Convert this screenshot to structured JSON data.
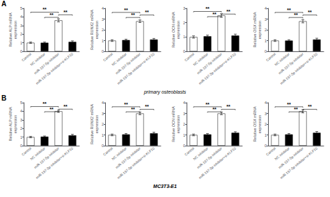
{
  "chart_data": [
    {
      "type": "bar",
      "title": "A",
      "subtitle": "primary osteoblasts",
      "ylabel": "Relative ALP mRNA\nexpression",
      "categories": [
        "Control",
        "NC inhibitor",
        "miR-197-5p inhibitor",
        "miR-197-5p inhibitor+si-KLF10"
      ],
      "values": [
        1.0,
        1.0,
        3.6,
        1.1
      ],
      "errors": [
        0.08,
        0.08,
        0.18,
        0.12
      ],
      "colors": [
        "white",
        "black",
        "white",
        "black"
      ],
      "ylim": [
        0,
        5
      ],
      "yticks": [
        0,
        1,
        2,
        3,
        4,
        5
      ],
      "grid": false,
      "annotations": [
        {
          "from": "Control",
          "to": "miR-197-5p inhibitor",
          "y": 4.55,
          "label": "**"
        },
        {
          "from": "NC inhibitor",
          "to": "miR-197-5p inhibitor",
          "y": 3.95,
          "label": "**"
        },
        {
          "from": "miR-197-5p inhibitor",
          "to": "miR-197-5p inhibitor+si-KLF10",
          "y": 4.25,
          "label": "**"
        }
      ]
    },
    {
      "type": "bar",
      "ylabel": "Relative RUNX2 mRNA\nexpression",
      "categories": [
        "Control",
        "NC inhibitor",
        "miR-197-5p inhibitor",
        "miR-197-5p inhibitor+si-KLF10"
      ],
      "values": [
        1.0,
        1.05,
        2.8,
        1.1
      ],
      "errors": [
        0.08,
        0.08,
        0.12,
        0.1
      ],
      "colors": [
        "white",
        "black",
        "white",
        "black"
      ],
      "ylim": [
        0,
        4
      ],
      "yticks": [
        0,
        1,
        2,
        3,
        4
      ],
      "grid": false,
      "annotations": [
        {
          "from": "Control",
          "to": "miR-197-5p inhibitor",
          "y": 3.62,
          "label": "**"
        },
        {
          "from": "NC inhibitor",
          "to": "miR-197-5p inhibitor",
          "y": 3.15,
          "label": "**"
        },
        {
          "from": "miR-197-5p inhibitor",
          "to": "miR-197-5p inhibitor+si-KLF10",
          "y": 3.38,
          "label": "**"
        }
      ]
    },
    {
      "type": "bar",
      "ylabel": "Relative OCN mRNA\nexpression",
      "categories": [
        "Control",
        "NC inhibitor",
        "miR-197-5p inhibitor",
        "miR-197-5p inhibitor+si-KLF10"
      ],
      "values": [
        1.0,
        1.05,
        2.5,
        1.1
      ],
      "errors": [
        0.08,
        0.08,
        0.12,
        0.1
      ],
      "colors": [
        "white",
        "black",
        "white",
        "black"
      ],
      "ylim": [
        0,
        3
      ],
      "yticks": [
        0,
        1,
        2,
        3
      ],
      "grid": false,
      "annotations": [
        {
          "from": "Control",
          "to": "miR-197-5p inhibitor",
          "y": 2.78,
          "label": "**"
        },
        {
          "from": "NC inhibitor",
          "to": "miR-197-5p inhibitor",
          "y": 2.42,
          "label": "**"
        },
        {
          "from": "miR-197-5p inhibitor",
          "to": "miR-197-5p inhibitor+si-KLF10",
          "y": 2.6,
          "label": "**"
        }
      ]
    },
    {
      "type": "bar",
      "ylabel": "Relative OSX mRNA\nexpression",
      "categories": [
        "Control",
        "NC inhibitor",
        "miR-197-5p inhibitor",
        "miR-197-5p inhibitor+si-KLF10"
      ],
      "values": [
        1.0,
        1.0,
        2.8,
        1.1
      ],
      "errors": [
        0.08,
        0.08,
        0.15,
        0.12
      ],
      "colors": [
        "white",
        "black",
        "white",
        "black"
      ],
      "ylim": [
        0,
        4
      ],
      "yticks": [
        0,
        1,
        2,
        3,
        4
      ],
      "grid": false,
      "annotations": [
        {
          "from": "Control",
          "to": "miR-197-5p inhibitor",
          "y": 3.62,
          "label": "**"
        },
        {
          "from": "NC inhibitor",
          "to": "miR-197-5p inhibitor",
          "y": 3.15,
          "label": "**"
        },
        {
          "from": "miR-197-5p inhibitor",
          "to": "miR-197-5p inhibitor+si-KLF10",
          "y": 3.38,
          "label": "**"
        }
      ]
    },
    {
      "type": "bar",
      "title": "B",
      "subtitle": "MC3T3-E1",
      "ylabel": "Relative ALP mRNA\nexpression",
      "categories": [
        "Control",
        "NC inhibitor",
        "miR-197-5p inhibitor",
        "miR-197-5p inhibitor+si-KLF10"
      ],
      "values": [
        1.0,
        1.05,
        4.0,
        1.2
      ],
      "errors": [
        0.08,
        0.08,
        0.12,
        0.12
      ],
      "colors": [
        "white",
        "black",
        "white",
        "black"
      ],
      "ylim": [
        0,
        5
      ],
      "yticks": [
        0,
        1,
        2,
        3,
        4,
        5
      ],
      "grid": false,
      "annotations": [
        {
          "from": "Control",
          "to": "miR-197-5p inhibitor",
          "y": 4.55,
          "label": "**"
        },
        {
          "from": "NC inhibitor",
          "to": "miR-197-5p inhibitor",
          "y": 3.95,
          "label": "**"
        },
        {
          "from": "miR-197-5p inhibitor",
          "to": "miR-197-5p inhibitor+si-KLF10",
          "y": 4.25,
          "label": "**"
        }
      ]
    },
    {
      "type": "bar",
      "ylabel": "Relative RUNX2 mRNA\nexpression",
      "categories": [
        "Control",
        "NC inhibitor",
        "miR-197-5p inhibitor",
        "miR-197-5p inhibitor+si-KLF10"
      ],
      "values": [
        1.0,
        1.05,
        3.0,
        1.15
      ],
      "errors": [
        0.08,
        0.08,
        0.12,
        0.1
      ],
      "colors": [
        "white",
        "black",
        "white",
        "black"
      ],
      "ylim": [
        0,
        4
      ],
      "yticks": [
        0,
        1,
        2,
        3,
        4
      ],
      "grid": false,
      "annotations": [
        {
          "from": "Control",
          "to": "miR-197-5p inhibitor",
          "y": 3.62,
          "label": "**"
        },
        {
          "from": "NC inhibitor",
          "to": "miR-197-5p inhibitor",
          "y": 3.15,
          "label": "**"
        },
        {
          "from": "miR-197-5p inhibitor",
          "to": "miR-197-5p inhibitor+si-KLF10",
          "y": 3.38,
          "label": "**"
        }
      ]
    },
    {
      "type": "bar",
      "ylabel": "Relative OCN mRNA\nexpression",
      "categories": [
        "Control",
        "NC inhibitor",
        "miR-197-5p inhibitor",
        "miR-197-5p inhibitor+si-KLF10"
      ],
      "values": [
        1.0,
        1.05,
        3.0,
        1.2
      ],
      "errors": [
        0.08,
        0.08,
        0.12,
        0.1
      ],
      "colors": [
        "white",
        "black",
        "white",
        "black"
      ],
      "ylim": [
        0,
        4
      ],
      "yticks": [
        0,
        1,
        2,
        3,
        4
      ],
      "grid": false,
      "annotations": [
        {
          "from": "Control",
          "to": "miR-197-5p inhibitor",
          "y": 3.62,
          "label": "**"
        },
        {
          "from": "NC inhibitor",
          "to": "miR-197-5p inhibitor",
          "y": 3.15,
          "label": "**"
        },
        {
          "from": "miR-197-5p inhibitor",
          "to": "miR-197-5p inhibitor+si-KLF10",
          "y": 3.38,
          "label": "**"
        }
      ]
    },
    {
      "type": "bar",
      "ylabel": "Relative OSX mRNA\nexpression",
      "categories": [
        "Control",
        "NC inhibitor",
        "miR-197-5p inhibitor",
        "miR-197-5p inhibitor+si-KLF10"
      ],
      "values": [
        1.0,
        1.05,
        3.2,
        1.2
      ],
      "errors": [
        0.08,
        0.08,
        0.15,
        0.12
      ],
      "colors": [
        "white",
        "black",
        "white",
        "black"
      ],
      "ylim": [
        0,
        4
      ],
      "yticks": [
        0,
        1,
        2,
        3,
        4
      ],
      "grid": false,
      "annotations": [
        {
          "from": "Control",
          "to": "miR-197-5p inhibitor",
          "y": 3.62,
          "label": "**"
        },
        {
          "from": "NC inhibitor",
          "to": "miR-197-5p inhibitor",
          "y": 3.15,
          "label": "**"
        },
        {
          "from": "miR-197-5p inhibitor",
          "to": "miR-197-5p inhibitor+si-KLF10",
          "y": 3.38,
          "label": "**"
        }
      ]
    }
  ]
}
